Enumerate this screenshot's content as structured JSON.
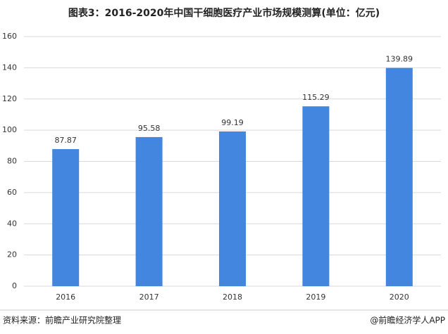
{
  "chart_data": {
    "type": "bar",
    "title": "图表3：2016-2020年中国干细胞医疗产业市场规模测算(单位：亿元)",
    "categories": [
      "2016",
      "2017",
      "2018",
      "2019",
      "2020"
    ],
    "values": [
      87.87,
      95.58,
      99.19,
      115.29,
      139.89
    ],
    "color": "#4286e0",
    "ylim": [
      0,
      160
    ],
    "yticks": [
      0,
      20,
      40,
      60,
      80,
      100,
      120,
      140,
      160
    ],
    "grid": true,
    "source": "资料来源：前瞻产业研究院整理",
    "credit": "@前瞻经济学人APP"
  }
}
